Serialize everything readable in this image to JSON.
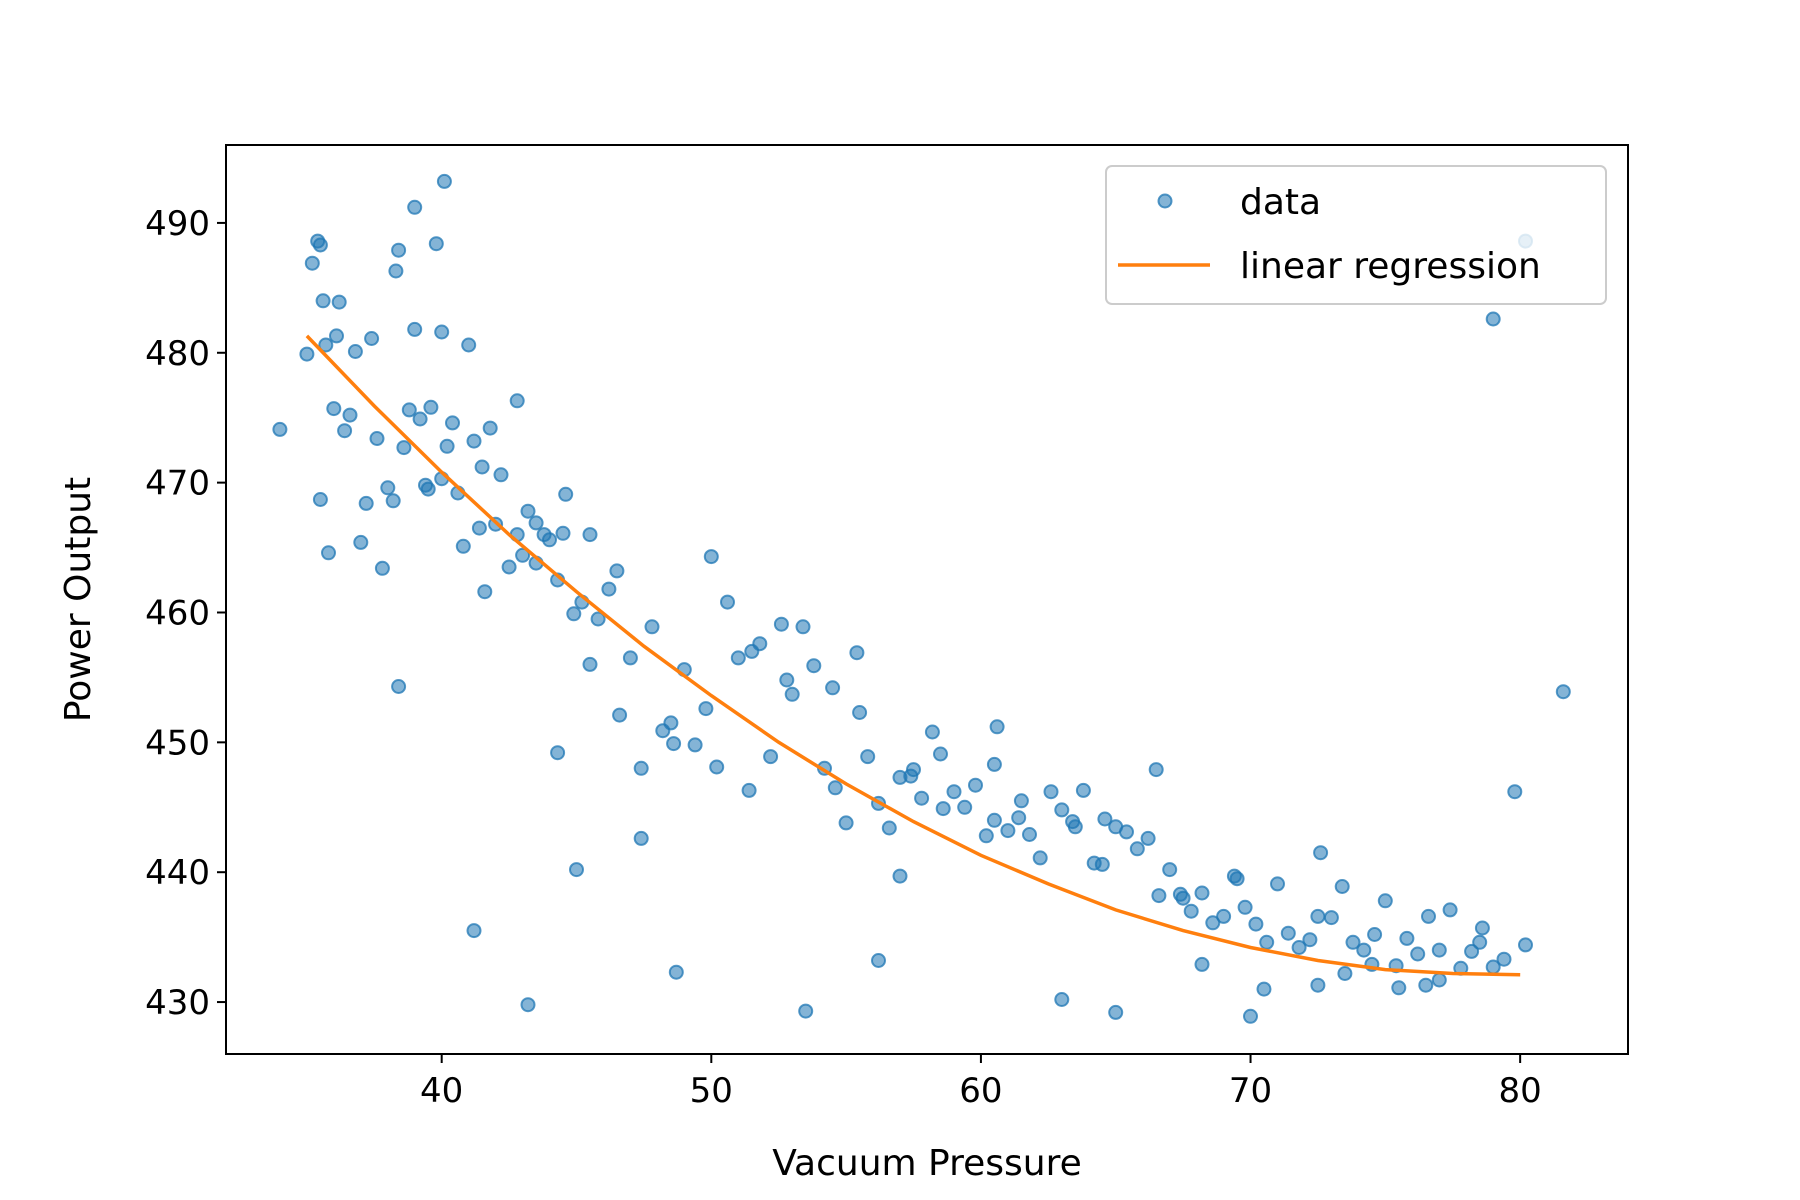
{
  "chart_data": {
    "type": "scatter",
    "title": "",
    "xlabel": "Vacuum Pressure",
    "ylabel": "Power Output",
    "xlim": [
      32,
      84
    ],
    "ylim": [
      426,
      496
    ],
    "xticks": [
      40,
      50,
      60,
      70,
      80
    ],
    "yticks": [
      430,
      440,
      450,
      460,
      470,
      480,
      490
    ],
    "grid": false,
    "legend_position": "top-right",
    "colors": {
      "data": "#1f77b4",
      "regression": "#ff7f0e"
    },
    "series": [
      {
        "name": "data",
        "kind": "scatter",
        "x": [
          34.0,
          35.0,
          35.2,
          35.4,
          35.5,
          35.6,
          35.7,
          35.8,
          36.0,
          36.1,
          36.2,
          36.4,
          36.6,
          36.8,
          37.0,
          37.2,
          37.4,
          37.6,
          37.8,
          38.0,
          38.2,
          38.4,
          38.6,
          38.8,
          39.0,
          39.2,
          39.4,
          39.6,
          39.8,
          40.0,
          40.2,
          40.4,
          40.6,
          40.8,
          41.0,
          41.2,
          41.4,
          41.6,
          41.8,
          42.0,
          42.2,
          42.5,
          42.8,
          43.0,
          43.2,
          43.5,
          43.8,
          44.0,
          44.3,
          44.6,
          44.9,
          45.2,
          45.5,
          45.8,
          46.2,
          46.6,
          47.0,
          47.4,
          47.8,
          48.2,
          48.6,
          49.0,
          49.4,
          49.8,
          50.2,
          50.6,
          51.0,
          51.4,
          51.8,
          52.2,
          52.6,
          53.0,
          53.4,
          53.8,
          54.2,
          54.6,
          55.0,
          55.4,
          55.8,
          56.2,
          56.6,
          57.0,
          57.4,
          57.8,
          58.2,
          58.6,
          59.0,
          59.4,
          59.8,
          60.2,
          60.6,
          61.0,
          61.4,
          61.8,
          62.2,
          62.6,
          63.0,
          63.4,
          63.8,
          64.2,
          64.6,
          65.0,
          65.4,
          65.8,
          66.2,
          66.6,
          67.0,
          67.4,
          67.8,
          68.2,
          68.6,
          69.0,
          69.4,
          69.8,
          70.2,
          70.6,
          71.0,
          71.4,
          71.8,
          72.2,
          72.6,
          73.0,
          73.4,
          73.8,
          74.2,
          74.6,
          75.0,
          75.4,
          75.8,
          76.2,
          76.6,
          77.0,
          77.4,
          77.8,
          78.2,
          78.6,
          79.0,
          79.4,
          79.8,
          80.2,
          81.6,
          38.4,
          39.0,
          40.1,
          41.2,
          43.2,
          44.3,
          45.0,
          47.4,
          48.7,
          53.5,
          56.2,
          57.0,
          60.5,
          63.0,
          65.0,
          68.2,
          70.0,
          72.5,
          74.5,
          77.0,
          80.2,
          35.5,
          38.3,
          40.0,
          42.8,
          44.5,
          46.5,
          50.0,
          52.8,
          55.5,
          58.5,
          61.5,
          64.5,
          67.5,
          70.5,
          73.5,
          76.5,
          79.0,
          39.5,
          41.5,
          43.5,
          45.5,
          48.5,
          51.5,
          54.5,
          57.5,
          60.5,
          63.5,
          66.5,
          69.5,
          72.5,
          75.5,
          78.5
        ],
        "y": [
          474.1,
          479.9,
          486.9,
          488.6,
          468.7,
          484.0,
          480.6,
          464.6,
          475.7,
          481.3,
          483.9,
          474.0,
          475.2,
          480.1,
          465.4,
          468.4,
          481.1,
          473.4,
          463.4,
          469.6,
          468.6,
          487.9,
          472.7,
          475.6,
          481.8,
          474.9,
          469.8,
          475.8,
          488.4,
          470.3,
          472.8,
          474.6,
          469.2,
          465.1,
          480.6,
          473.2,
          466.5,
          461.6,
          474.2,
          466.8,
          470.6,
          463.5,
          466.0,
          464.4,
          467.8,
          463.8,
          466.0,
          465.6,
          462.5,
          469.1,
          459.9,
          460.8,
          456.0,
          459.5,
          461.8,
          452.1,
          456.5,
          448.0,
          458.9,
          450.9,
          449.9,
          455.6,
          449.8,
          452.6,
          448.1,
          460.8,
          456.5,
          446.3,
          457.6,
          448.9,
          459.1,
          453.7,
          458.9,
          455.9,
          448.0,
          446.5,
          443.8,
          456.9,
          448.9,
          445.3,
          443.4,
          447.3,
          447.4,
          445.7,
          450.8,
          444.9,
          446.2,
          445.0,
          446.7,
          442.8,
          451.2,
          443.2,
          444.2,
          442.9,
          441.1,
          446.2,
          444.8,
          443.9,
          446.3,
          440.7,
          444.1,
          443.5,
          443.1,
          441.8,
          442.6,
          438.2,
          440.2,
          438.3,
          437.0,
          438.4,
          436.1,
          436.6,
          439.7,
          437.3,
          436.0,
          434.6,
          439.1,
          435.3,
          434.2,
          434.8,
          441.5,
          436.5,
          438.9,
          434.6,
          434.0,
          435.2,
          437.8,
          432.8,
          434.9,
          433.7,
          436.6,
          434.0,
          437.1,
          432.6,
          433.9,
          435.7,
          432.7,
          433.3,
          446.2,
          434.4,
          453.9,
          454.3,
          491.2,
          493.2,
          435.5,
          429.8,
          449.2,
          440.2,
          442.6,
          432.3,
          429.3,
          433.2,
          439.7,
          444.0,
          430.2,
          429.2,
          432.9,
          428.9,
          431.3,
          432.9,
          431.7,
          488.6,
          488.3,
          486.3,
          481.6,
          476.3,
          466.1,
          463.2,
          464.3,
          454.8,
          452.3,
          449.1,
          445.5,
          440.6,
          438.0,
          431.0,
          432.2,
          431.3,
          482.6,
          469.5,
          471.2,
          466.9,
          466.0,
          451.5,
          457.0,
          454.2,
          447.9,
          448.3,
          443.5,
          447.9,
          439.5,
          436.6,
          431.1,
          434.6
        ]
      },
      {
        "name": "linear regression",
        "kind": "line",
        "x": [
          35,
          37.5,
          40,
          42.5,
          45,
          47.5,
          50,
          52.5,
          55,
          57.5,
          60,
          62.5,
          65,
          67.5,
          70,
          72.5,
          75,
          77.5,
          80
        ],
        "y": [
          481.3,
          475.9,
          470.8,
          466.0,
          461.6,
          457.4,
          453.6,
          450.0,
          446.8,
          443.9,
          441.3,
          439.1,
          437.1,
          435.5,
          434.2,
          433.2,
          432.5,
          432.2,
          432.1
        ]
      }
    ]
  }
}
